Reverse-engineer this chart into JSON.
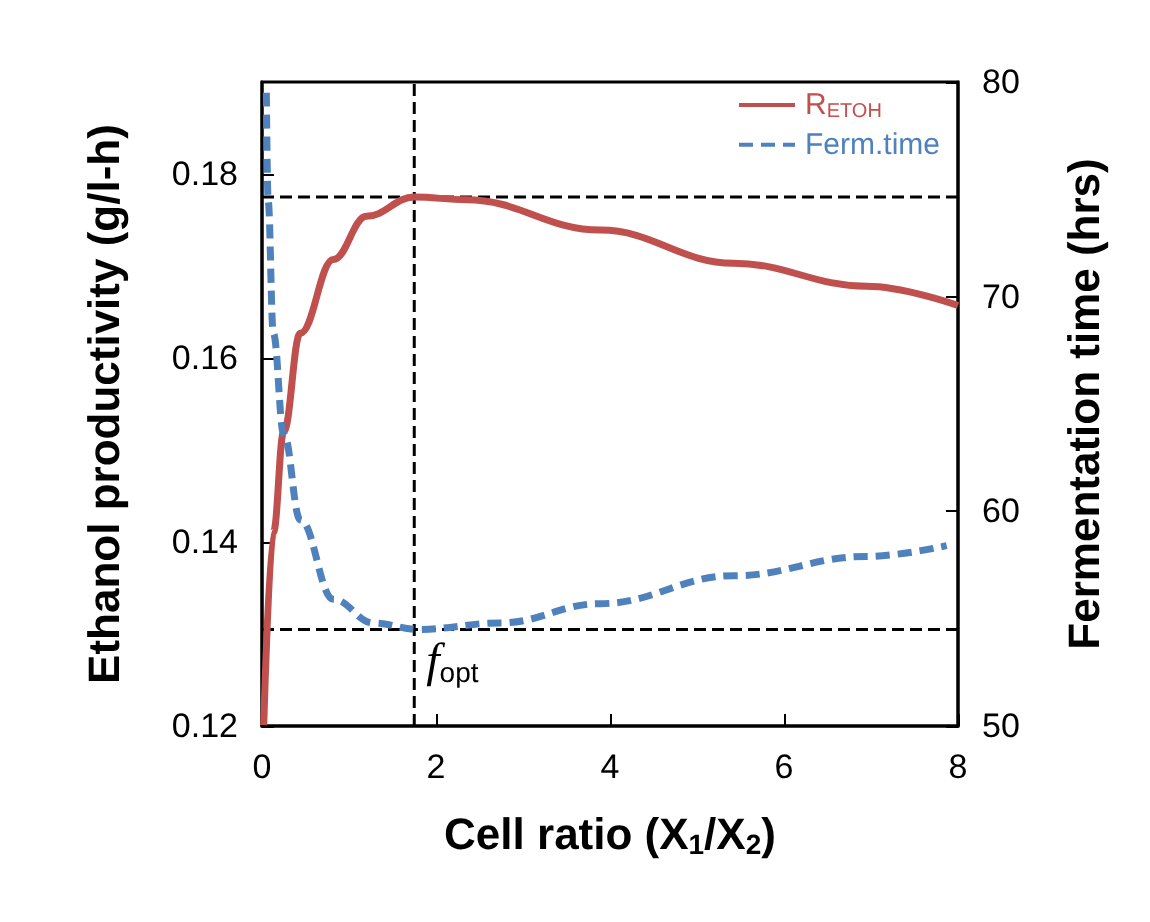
{
  "chart_data": {
    "type": "line",
    "xlabel": "Cell ratio (X$_{1}$/X$_{2}$)",
    "ylabel": "Ethanol productivity (g/l-h)",
    "y2label": "Fermentation time (hrs)",
    "xlim": [
      0,
      8
    ],
    "xticks": [
      0,
      2,
      4,
      6,
      8
    ],
    "ylim": [
      0.12,
      0.19
    ],
    "yticks": [
      0.12,
      0.14,
      0.16,
      0.18
    ],
    "y2lim": [
      50,
      80
    ],
    "y2ticks": [
      50,
      60,
      70,
      80
    ],
    "grid": false,
    "legend": "top right",
    "marker": "none",
    "series": [
      {
        "name": "R$_{ETOH}$",
        "color": "#c0504d",
        "line_style": "solid",
        "x": [
          0.02,
          0.13,
          0.25,
          0.44,
          0.82,
          1.2,
          1.75,
          2.35,
          3.89,
          5.42,
          6.95,
          8
        ],
        "values": [
          0.1201,
          0.141,
          0.152,
          0.1627,
          0.1707,
          0.1754,
          0.1775,
          0.1772,
          0.1739,
          0.1703,
          0.1678,
          0.1657
        ]
      },
      {
        "name": "Ferm.time",
        "color": "#4f81bd",
        "line_style": "dashed",
        "axis": "y2",
        "x": [
          0.05,
          0.07,
          0.13,
          0.25,
          0.44,
          0.82,
          1.28,
          1.8,
          2.74,
          3.89,
          5.42,
          6.95,
          7.87
        ],
        "values": [
          79.5,
          74.5,
          68.3,
          63.6,
          59.6,
          55.9,
          54.8,
          54.5,
          54.8,
          55.7,
          57.0,
          57.9,
          58.4
        ]
      }
    ],
    "ref_lines": [
      {
        "axis": "x",
        "value": 1.75,
        "color": "#000000",
        "line_style": "dashed"
      },
      {
        "axis": "y",
        "value": 0.1775,
        "color": "#000000",
        "line_style": "dashed"
      },
      {
        "axis": "y2",
        "value": 54.5,
        "color": "#000000",
        "line_style": "dashed"
      }
    ],
    "annotations": [
      {
        "text": "f$_{opt}$",
        "x": 1.75,
        "y": 0.127
      }
    ]
  }
}
